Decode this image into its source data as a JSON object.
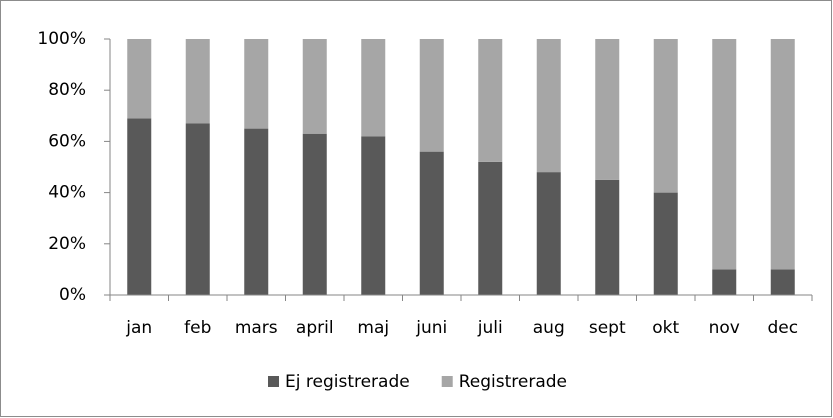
{
  "chart_data": {
    "type": "stacked_bar_100",
    "categories": [
      "jan",
      "feb",
      "mars",
      "april",
      "maj",
      "juni",
      "juli",
      "aug",
      "sept",
      "okt",
      "nov",
      "dec"
    ],
    "series": [
      {
        "name": "Ej registrerade",
        "color": "#595959",
        "values": [
          69,
          67,
          65,
          63,
          62,
          56,
          52,
          48,
          45,
          40,
          10,
          10
        ]
      },
      {
        "name": "Registrerade",
        "color": "#a6a6a6",
        "values": [
          31,
          33,
          35,
          37,
          38,
          44,
          48,
          52,
          55,
          60,
          90,
          90
        ]
      }
    ],
    "ylim": [
      0,
      100
    ],
    "yticks": [
      {
        "value": 0,
        "label": "0%"
      },
      {
        "value": 20,
        "label": "20%"
      },
      {
        "value": 40,
        "label": "40%"
      },
      {
        "value": 60,
        "label": "60%"
      },
      {
        "value": 80,
        "label": "80%"
      },
      {
        "value": 100,
        "label": "100%"
      }
    ],
    "legend": "bottom"
  }
}
